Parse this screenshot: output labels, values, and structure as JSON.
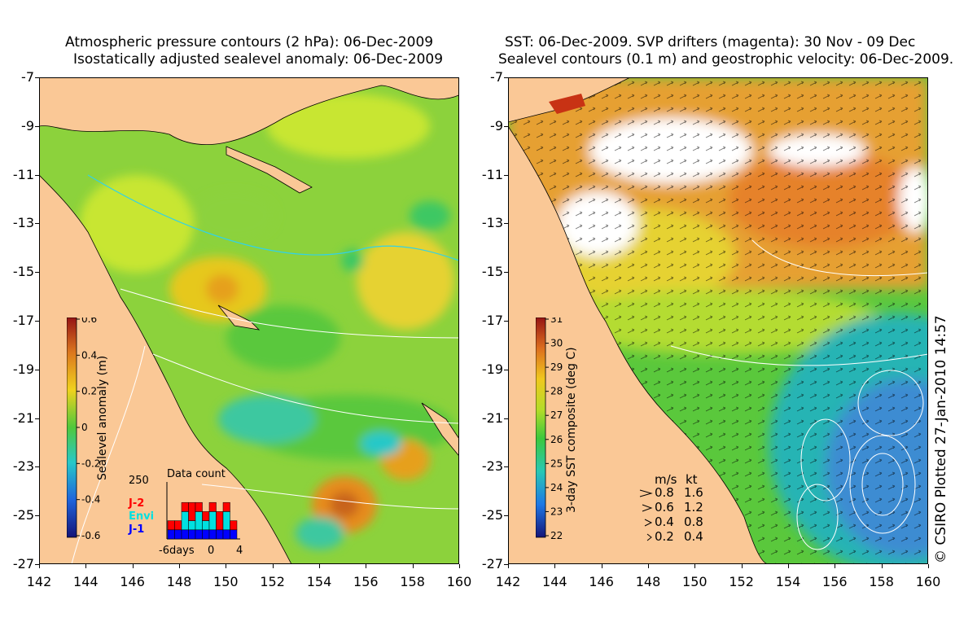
{
  "left_panel": {
    "title_line1": "Atmospheric pressure contours (2 hPa): 06-Dec-2009",
    "title_line2": "Isostatically adjusted sealevel anomaly: 06-Dec-2009",
    "lat_ticks": [
      "-7",
      "-9",
      "-11",
      "-13",
      "-15",
      "-17",
      "-19",
      "-21",
      "-23",
      "-25",
      "-27"
    ],
    "lon_ticks": [
      "142",
      "144",
      "146",
      "148",
      "150",
      "152",
      "154",
      "156",
      "158",
      "160"
    ],
    "colorbar": {
      "label": "Sealevel anomaly (m)",
      "ticks": [
        "0.6",
        "0.4",
        "0.2",
        "0",
        "-0.2",
        "-0.4",
        "-0.6"
      ]
    },
    "data_count": {
      "title": "Data count",
      "max_label": "250",
      "x_labels": [
        "-6days",
        "0",
        "4"
      ],
      "legend": [
        {
          "name": "J-2",
          "color": "#ff0000"
        },
        {
          "name": "Envi",
          "color": "#00e0e0"
        },
        {
          "name": "J-1",
          "color": "#0000ff"
        }
      ],
      "bars": [
        {
          "j1": 40,
          "envi": 0,
          "j2": 40
        },
        {
          "j1": 40,
          "envi": 0,
          "j2": 40
        },
        {
          "j1": 40,
          "envi": 80,
          "j2": 40
        },
        {
          "j1": 40,
          "envi": 40,
          "j2": 80
        },
        {
          "j1": 40,
          "envi": 80,
          "j2": 40
        },
        {
          "j1": 40,
          "envi": 40,
          "j2": 40
        },
        {
          "j1": 40,
          "envi": 80,
          "j2": 40
        },
        {
          "j1": 40,
          "envi": 0,
          "j2": 80
        },
        {
          "j1": 40,
          "envi": 80,
          "j2": 40
        },
        {
          "j1": 40,
          "envi": 0,
          "j2": 40
        }
      ]
    }
  },
  "right_panel": {
    "title_line1": "SST: 06-Dec-2009. SVP drifters (magenta): 30 Nov - 09 Dec",
    "title_line2": "Sealevel contours (0.1 m) and geostrophic velocity: 06-Dec-2009.",
    "lat_ticks": [
      "-7",
      "-9",
      "-11",
      "-13",
      "-15",
      "-17",
      "-19",
      "-21",
      "-23",
      "-25",
      "-27"
    ],
    "lon_ticks": [
      "142",
      "144",
      "146",
      "148",
      "150",
      "152",
      "154",
      "156",
      "158",
      "160"
    ],
    "colorbar": {
      "label": "3-day SST composite (deg C)",
      "ticks": [
        "31",
        "30",
        "29",
        "28",
        "27",
        "26",
        "25",
        "24",
        "23",
        "22"
      ]
    },
    "velocity_legend": {
      "header_ms": "m/s",
      "header_kt": "kt",
      "rows": [
        {
          "ms": "0.8",
          "kt": "1.6"
        },
        {
          "ms": "0.6",
          "kt": "1.2"
        },
        {
          "ms": "0.4",
          "kt": "0.8"
        },
        {
          "ms": "0.2",
          "kt": "0.4"
        }
      ]
    }
  },
  "copyright": "© CSIRO Plotted 27-Jan-2010 14:57",
  "colors": {
    "land": "#fac896",
    "ocean_green": "#5ac83c",
    "anomaly_yellow": "#c8e632",
    "anomaly_orange": "#e6a01e",
    "sst_orange": "#e68c28",
    "sst_blue": "#3c8cd2"
  }
}
